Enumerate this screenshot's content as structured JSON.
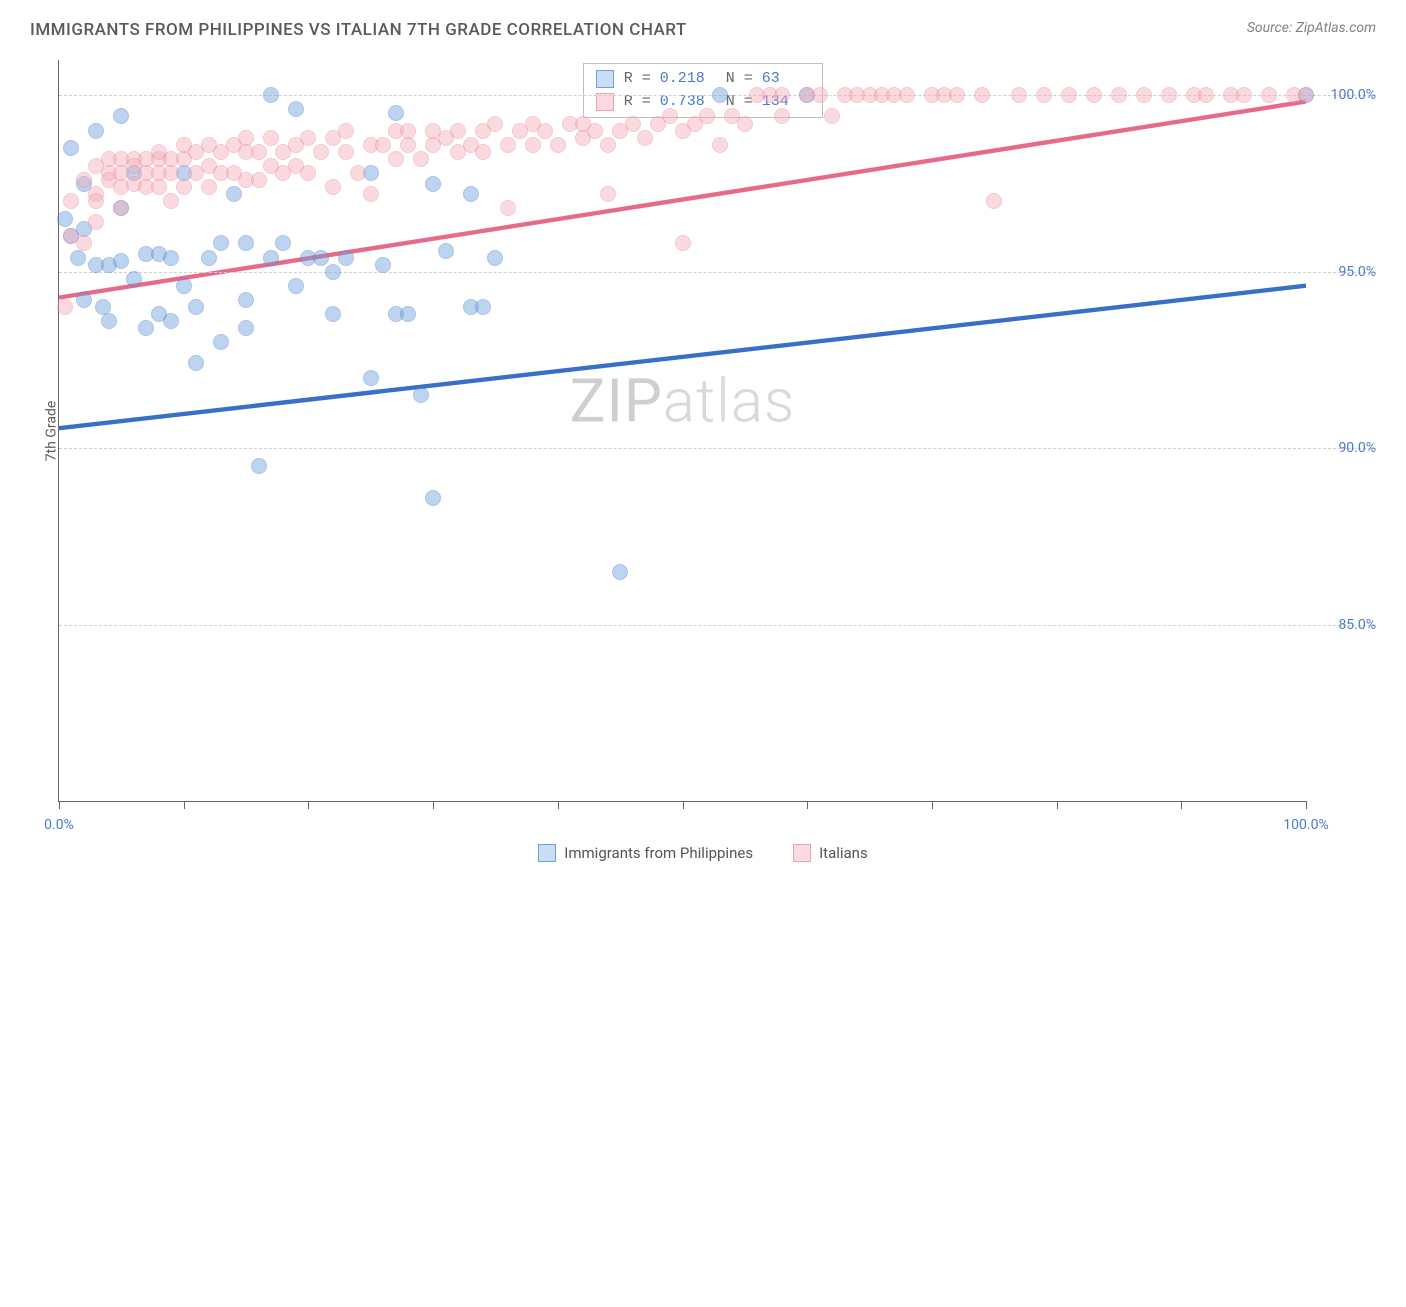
{
  "title": "IMMIGRANTS FROM PHILIPPINES VS ITALIAN 7TH GRADE CORRELATION CHART",
  "source_label": "Source:",
  "source_value": "ZipAtlas.com",
  "ylabel": "7th Grade",
  "watermark": {
    "a": "ZIP",
    "b": "atlas"
  },
  "chart": {
    "type": "scatter",
    "background_color": "#ffffff",
    "grid_color": "#d0d0d0",
    "axis_color": "#666666",
    "xlim": [
      0,
      100
    ],
    "ylim": [
      80,
      101
    ],
    "yticks": [
      85.0,
      90.0,
      95.0,
      100.0
    ],
    "ytick_labels": [
      "85.0%",
      "90.0%",
      "95.0%",
      "100.0%"
    ],
    "xticks": [
      0,
      10,
      20,
      30,
      40,
      50,
      60,
      70,
      80,
      90,
      100
    ],
    "xtick_labels": {
      "0": "0.0%",
      "100": "100.0%"
    },
    "dot_radius": 8,
    "dot_opacity": 0.45,
    "series": [
      {
        "name": "Immigrants from Philippines",
        "color": "#6fa1e0",
        "stroke": "#4a7bc8",
        "trend_color": "#3a6fc8",
        "R": "0.218",
        "N": "63",
        "trend": {
          "x1": 0,
          "y1": 94.8,
          "x2": 100,
          "y2": 97.2
        },
        "points": [
          [
            0.5,
            96.5
          ],
          [
            1,
            96.0
          ],
          [
            1,
            98.5
          ],
          [
            1.5,
            95.4
          ],
          [
            2,
            96.2
          ],
          [
            2,
            97.5
          ],
          [
            2,
            94.2
          ],
          [
            3,
            95.2
          ],
          [
            3,
            99.0
          ],
          [
            3.5,
            94.0
          ],
          [
            4,
            93.6
          ],
          [
            4,
            95.2
          ],
          [
            5,
            99.4
          ],
          [
            5,
            95.3
          ],
          [
            5,
            96.8
          ],
          [
            6,
            97.8
          ],
          [
            6,
            94.8
          ],
          [
            7,
            93.4
          ],
          [
            7,
            95.5
          ],
          [
            8,
            93.8
          ],
          [
            8,
            95.5
          ],
          [
            9,
            95.4
          ],
          [
            9,
            93.6
          ],
          [
            10,
            97.8
          ],
          [
            10,
            94.6
          ],
          [
            11,
            94.0
          ],
          [
            11,
            92.4
          ],
          [
            12,
            95.4
          ],
          [
            13,
            93.0
          ],
          [
            13,
            95.8
          ],
          [
            14,
            97.2
          ],
          [
            15,
            94.2
          ],
          [
            15,
            93.4
          ],
          [
            15,
            95.8
          ],
          [
            16,
            89.5
          ],
          [
            17,
            100.0
          ],
          [
            17,
            95.4
          ],
          [
            18,
            95.8
          ],
          [
            19,
            94.6
          ],
          [
            19,
            99.6
          ],
          [
            20,
            95.4
          ],
          [
            21,
            95.4
          ],
          [
            22,
            95.0
          ],
          [
            22,
            93.8
          ],
          [
            23,
            95.4
          ],
          [
            25,
            92.0
          ],
          [
            25,
            97.8
          ],
          [
            26,
            95.2
          ],
          [
            27,
            99.5
          ],
          [
            27,
            93.8
          ],
          [
            28,
            93.8
          ],
          [
            29,
            91.5
          ],
          [
            30,
            88.6
          ],
          [
            30,
            97.5
          ],
          [
            31,
            95.6
          ],
          [
            33,
            97.2
          ],
          [
            33,
            94.0
          ],
          [
            34,
            94.0
          ],
          [
            35,
            95.4
          ],
          [
            45,
            86.5
          ],
          [
            53,
            100.0
          ],
          [
            60,
            100.0
          ],
          [
            100,
            100.0
          ]
        ]
      },
      {
        "name": "Italians",
        "color": "#f5aeb9",
        "stroke": "#e8899b",
        "trend_color": "#e86a8a",
        "R": "0.738",
        "N": "134",
        "trend": {
          "x1": 0,
          "y1": 97.0,
          "x2": 100,
          "y2": 100.3
        },
        "points": [
          [
            0.5,
            94.0
          ],
          [
            1,
            96.0
          ],
          [
            1,
            97.0
          ],
          [
            2,
            95.8
          ],
          [
            2,
            97.6
          ],
          [
            3,
            96.4
          ],
          [
            3,
            98.0
          ],
          [
            3,
            97.2
          ],
          [
            3,
            97.0
          ],
          [
            4,
            97.8
          ],
          [
            4,
            97.6
          ],
          [
            4,
            98.2
          ],
          [
            5,
            97.8
          ],
          [
            5,
            96.8
          ],
          [
            5,
            98.2
          ],
          [
            5,
            97.4
          ],
          [
            6,
            98.2
          ],
          [
            6,
            97.5
          ],
          [
            6,
            98.0
          ],
          [
            7,
            97.8
          ],
          [
            7,
            98.2
          ],
          [
            7,
            97.4
          ],
          [
            8,
            98.2
          ],
          [
            8,
            97.4
          ],
          [
            8,
            97.8
          ],
          [
            8,
            98.4
          ],
          [
            9,
            97.8
          ],
          [
            9,
            97.0
          ],
          [
            9,
            98.2
          ],
          [
            10,
            98.2
          ],
          [
            10,
            97.4
          ],
          [
            10,
            98.6
          ],
          [
            11,
            97.8
          ],
          [
            11,
            98.4
          ],
          [
            12,
            98.0
          ],
          [
            12,
            97.4
          ],
          [
            12,
            98.6
          ],
          [
            13,
            97.8
          ],
          [
            13,
            98.4
          ],
          [
            14,
            98.6
          ],
          [
            14,
            97.8
          ],
          [
            15,
            98.4
          ],
          [
            15,
            97.6
          ],
          [
            15,
            98.8
          ],
          [
            16,
            97.6
          ],
          [
            16,
            98.4
          ],
          [
            17,
            98.8
          ],
          [
            17,
            98.0
          ],
          [
            18,
            98.4
          ],
          [
            18,
            97.8
          ],
          [
            19,
            98.6
          ],
          [
            19,
            98.0
          ],
          [
            20,
            98.8
          ],
          [
            20,
            97.8
          ],
          [
            21,
            98.4
          ],
          [
            22,
            98.8
          ],
          [
            22,
            97.4
          ],
          [
            23,
            98.4
          ],
          [
            23,
            99.0
          ],
          [
            24,
            97.8
          ],
          [
            25,
            98.6
          ],
          [
            25,
            97.2
          ],
          [
            26,
            98.6
          ],
          [
            27,
            99.0
          ],
          [
            27,
            98.2
          ],
          [
            28,
            98.6
          ],
          [
            28,
            99.0
          ],
          [
            29,
            98.2
          ],
          [
            30,
            98.6
          ],
          [
            30,
            99.0
          ],
          [
            31,
            98.8
          ],
          [
            32,
            98.4
          ],
          [
            32,
            99.0
          ],
          [
            33,
            98.6
          ],
          [
            34,
            99.0
          ],
          [
            34,
            98.4
          ],
          [
            35,
            99.2
          ],
          [
            36,
            98.6
          ],
          [
            36,
            96.8
          ],
          [
            37,
            99.0
          ],
          [
            38,
            98.6
          ],
          [
            38,
            99.2
          ],
          [
            39,
            99.0
          ],
          [
            40,
            98.6
          ],
          [
            41,
            99.2
          ],
          [
            42,
            98.8
          ],
          [
            42,
            99.2
          ],
          [
            43,
            99.0
          ],
          [
            44,
            98.6
          ],
          [
            44,
            97.2
          ],
          [
            45,
            99.0
          ],
          [
            46,
            99.2
          ],
          [
            47,
            98.8
          ],
          [
            48,
            99.2
          ],
          [
            49,
            99.4
          ],
          [
            50,
            99.0
          ],
          [
            50,
            95.8
          ],
          [
            51,
            99.2
          ],
          [
            52,
            99.4
          ],
          [
            53,
            98.6
          ],
          [
            54,
            99.4
          ],
          [
            55,
            99.2
          ],
          [
            56,
            100.0
          ],
          [
            57,
            100.0
          ],
          [
            58,
            99.4
          ],
          [
            58,
            100.0
          ],
          [
            60,
            100.0
          ],
          [
            61,
            100.0
          ],
          [
            62,
            99.4
          ],
          [
            63,
            100.0
          ],
          [
            64,
            100.0
          ],
          [
            65,
            100.0
          ],
          [
            66,
            100.0
          ],
          [
            67,
            100.0
          ],
          [
            68,
            100.0
          ],
          [
            70,
            100.0
          ],
          [
            71,
            100.0
          ],
          [
            72,
            100.0
          ],
          [
            74,
            100.0
          ],
          [
            75,
            97.0
          ],
          [
            77,
            100.0
          ],
          [
            79,
            100.0
          ],
          [
            81,
            100.0
          ],
          [
            83,
            100.0
          ],
          [
            85,
            100.0
          ],
          [
            87,
            100.0
          ],
          [
            89,
            100.0
          ],
          [
            91,
            100.0
          ],
          [
            92,
            100.0
          ],
          [
            94,
            100.0
          ],
          [
            95,
            100.0
          ],
          [
            97,
            100.0
          ],
          [
            99,
            100.0
          ],
          [
            100,
            100.0
          ]
        ]
      }
    ]
  },
  "legend": [
    {
      "label": "Immigrants from Philippines",
      "fill": "#c9ddf5",
      "stroke": "#6fa1e0"
    },
    {
      "label": "Italians",
      "fill": "#fbdbe1",
      "stroke": "#f0a0b0"
    }
  ]
}
